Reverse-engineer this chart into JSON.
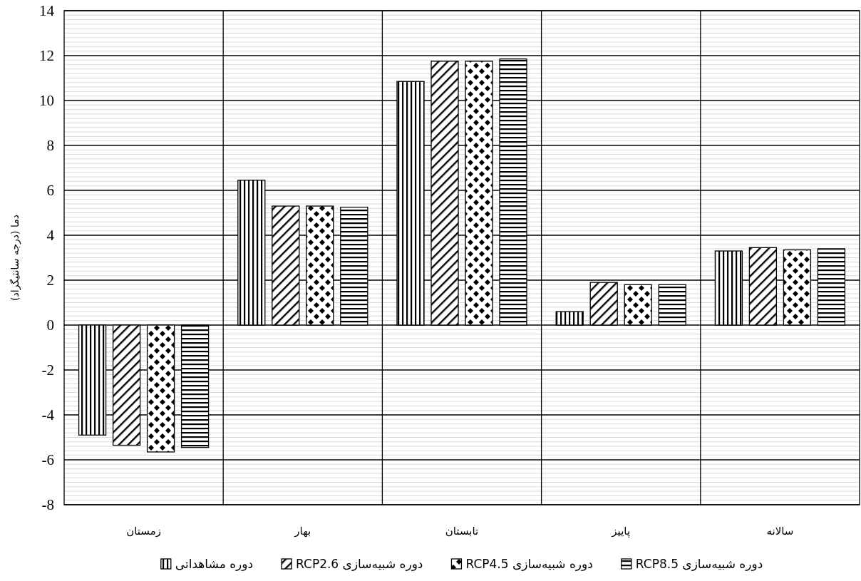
{
  "chart_data": {
    "type": "bar",
    "ylabel": "دما (درجه سانتیگراد)",
    "categories": [
      "زمستان",
      "بهار",
      "تابستان",
      "پاییز",
      "سالانه"
    ],
    "series": [
      {
        "name": "دوره مشاهداتی",
        "color": "#000000",
        "values": [
          -4.9,
          6.45,
          10.85,
          0.6,
          3.3
        ]
      },
      {
        "name": "دوره شبیه‌سازی RCP2.6",
        "color": "#000000",
        "values": [
          -5.35,
          5.3,
          11.75,
          1.9,
          3.45
        ]
      },
      {
        "name": "دوره شبیه‌سازی RCP4.5",
        "color": "#000000",
        "values": [
          -5.65,
          5.3,
          11.75,
          1.8,
          3.35
        ]
      },
      {
        "name": "دوره شبیه‌سازی RCP8.5",
        "color": "#000000",
        "values": [
          -5.45,
          5.25,
          11.85,
          1.8,
          3.4
        ]
      }
    ],
    "ylim": [
      -8,
      14
    ],
    "yticks": [
      -8,
      -6,
      -4,
      -2,
      0,
      2,
      4,
      6,
      8,
      10,
      12,
      14
    ],
    "grid": true,
    "legend": "bottom"
  }
}
